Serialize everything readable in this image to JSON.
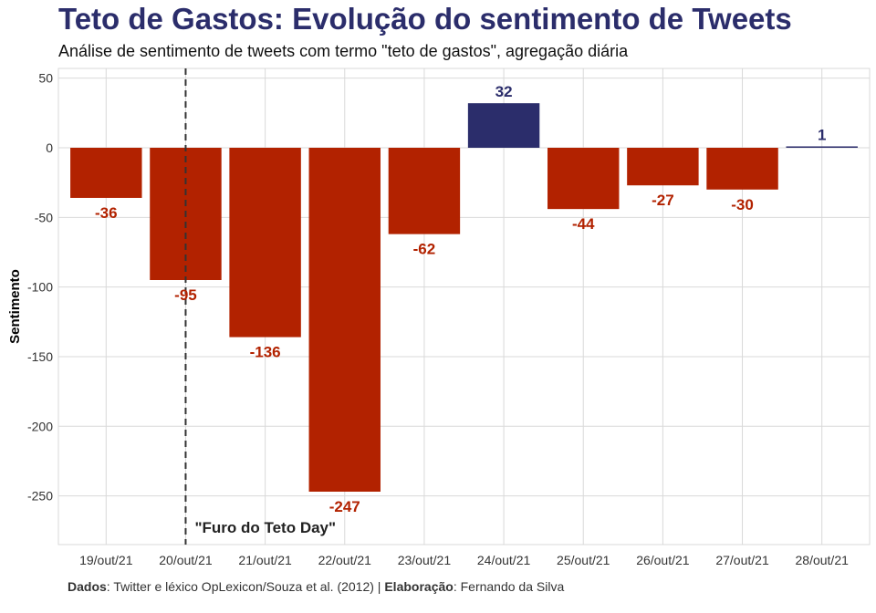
{
  "header": {
    "title": "Teto de Gastos: Evolução do sentimento de Tweets",
    "subtitle": "Análise de sentimento de tweets com termo \"teto de gastos\", agregação diária"
  },
  "caption": {
    "data_label": "Dados",
    "data_text": ": Twitter e léxico OpLexicon/Souza et al. (2012) | ",
    "author_label": "Elaboração",
    "author_text": ": Fernando da Silva"
  },
  "colors": {
    "negative": "#b22200",
    "positive": "#2b2d6b",
    "annotation_line": "#333333",
    "grid": "#d9d9d9"
  },
  "chart_data": {
    "type": "bar",
    "title": "Teto de Gastos: Evolução do sentimento de Tweets",
    "subtitle": "Análise de sentimento de tweets com termo \"teto de gastos\", agregação diária",
    "xlabel": "",
    "ylabel": "Sentimento",
    "categories": [
      "19/out/21",
      "20/out/21",
      "21/out/21",
      "22/out/21",
      "23/out/21",
      "24/out/21",
      "25/out/21",
      "26/out/21",
      "27/out/21",
      "28/out/21"
    ],
    "values": [
      -36,
      -95,
      -136,
      -247,
      -62,
      32,
      -44,
      -27,
      -30,
      1
    ],
    "ylim": [
      -285,
      57
    ],
    "yticks": [
      50,
      0,
      -50,
      -100,
      -150,
      -200,
      -250
    ],
    "grid": true,
    "legend": "none",
    "annotation": {
      "category": "20/out/21",
      "label": "\"Furo do Teto Day\"",
      "style": "dashed vertical line"
    }
  }
}
